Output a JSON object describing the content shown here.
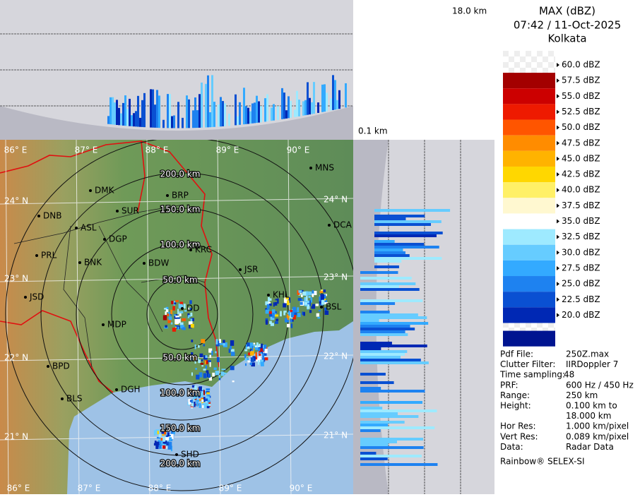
{
  "header": {
    "title": "MAX (dBZ)",
    "time": "07:42 / 11-Oct-2025",
    "location": "Kolkata"
  },
  "section_labels": {
    "top_height": "18.0 km",
    "bottom_height": "0.1 km"
  },
  "legend": {
    "labels": [
      "60.0 dBZ",
      "57.5 dBZ",
      "55.0 dBZ",
      "52.5 dBZ",
      "50.0 dBZ",
      "47.5 dBZ",
      "45.0 dBZ",
      "42.5 dBZ",
      "40.0 dBZ",
      "37.5 dBZ",
      "35.0 dBZ",
      "32.5 dBZ",
      "30.0 dBZ",
      "27.5 dBZ",
      "25.0 dBZ",
      "22.5 dBZ",
      "20.0 dBZ"
    ],
    "colors": [
      "#a30000",
      "#cc0000",
      "#ee1a00",
      "#ff5500",
      "#ff8c00",
      "#ffb300",
      "#ffd700",
      "#fff066",
      "#fff8d0",
      "#ffffff",
      "#9eeaff",
      "#66ccff",
      "#33aaff",
      "#1e82f0",
      "#0a50d2",
      "#0028b4",
      "#001490"
    ]
  },
  "info": [
    {
      "key": "Pdf File:",
      "value": "250Z.max"
    },
    {
      "key": "Clutter Filter:",
      "value": "IIRDoppler 7"
    },
    {
      "key": "Time sampling:",
      "value": "48"
    },
    {
      "key": "PRF:",
      "value": "600 Hz / 450 Hz"
    },
    {
      "key": "Range:",
      "value": "250 km"
    },
    {
      "key": "Height:",
      "value": [
        "0.100 km to",
        "18.000 km"
      ]
    },
    {
      "key": "Hor Res:",
      "value": "1.000 km/pixel"
    },
    {
      "key": "Vert Res:",
      "value": "0.089 km/pixel"
    },
    {
      "key": "Data:",
      "value": "Radar Data"
    }
  ],
  "footer": "Rainbow® SELEX-SI",
  "map": {
    "longitudes": [
      "86° E",
      "87° E",
      "88° E",
      "89° E",
      "90° E"
    ],
    "latitudes": [
      "24° N",
      "23° N",
      "22° N",
      "21° N"
    ],
    "ring_labels": [
      "50.0 km",
      "100.0 km",
      "150.0 km",
      "200.0 km"
    ],
    "cities": [
      "MNS",
      "DMK",
      "BRP",
      "DNB",
      "SUR",
      "ASL",
      "DGP",
      "DCA",
      "KRC",
      "PRL",
      "BNK",
      "BDW",
      "JSR",
      "KHL",
      "DD",
      "BSL",
      "JSD",
      "MDP",
      "BPD",
      "DGH",
      "BLS",
      "SHD"
    ]
  }
}
